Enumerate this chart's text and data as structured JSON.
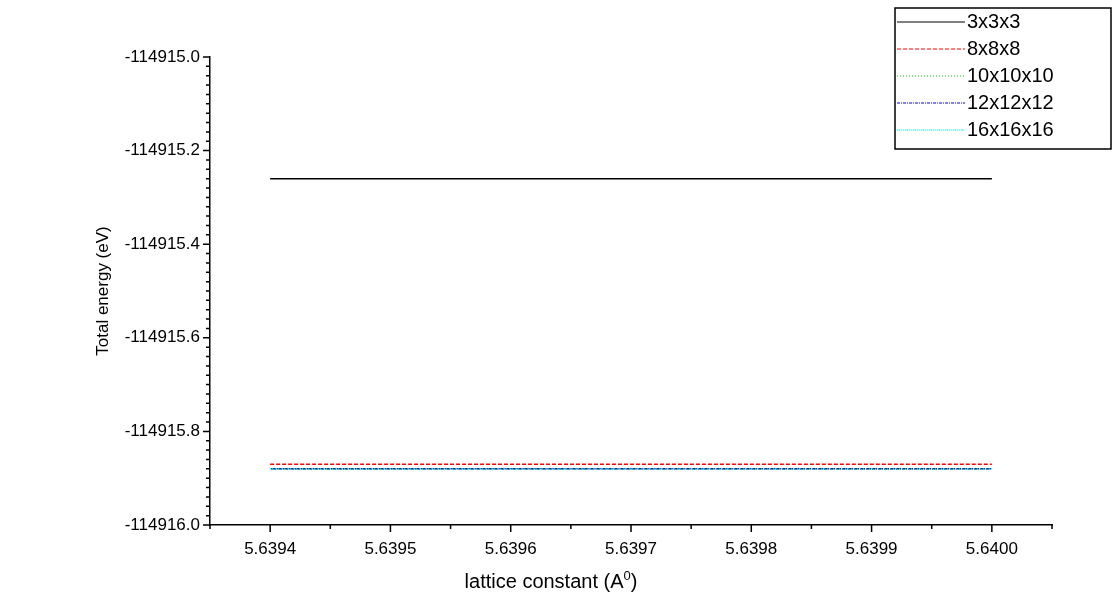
{
  "chart_data": {
    "type": "line",
    "xlabel": "lattice constant (A$^{0}$)",
    "ylabel": "Total energy (eV)",
    "xlim": [
      5.63935,
      5.64005
    ],
    "xticks": [
      {
        "value": 5.63935,
        "label": null
      },
      5.6394,
      {
        "value": 5.63945,
        "label": null
      },
      5.6395,
      {
        "value": 5.63955,
        "label": null
      },
      5.6396,
      {
        "value": 5.63965,
        "label": null
      },
      5.6397,
      {
        "value": 5.63975,
        "label": null
      },
      5.6398,
      {
        "value": 5.63985,
        "label": null
      },
      5.6399,
      {
        "value": 5.63995,
        "label": null
      },
      {
        "value": 5.64,
        "label": "5.6400"
      },
      {
        "value": 5.64005,
        "label": null
      }
    ],
    "ylim": [
      -114916.0,
      -114915.0
    ],
    "yticks": [
      {
        "value": -114916.0,
        "label": "-114916.0"
      },
      {
        "value": -114915.98,
        "label": null
      },
      {
        "value": -114915.96,
        "label": null
      },
      {
        "value": -114915.94,
        "label": null
      },
      {
        "value": -114915.92,
        "label": null
      },
      {
        "value": -114915.9,
        "label": null
      },
      {
        "value": -114915.88,
        "label": null
      },
      {
        "value": -114915.86,
        "label": null
      },
      {
        "value": -114915.84,
        "label": null
      },
      {
        "value": -114915.82,
        "label": null
      },
      {
        "value": -114915.8,
        "label": "-114915.8"
      },
      {
        "value": -114915.78,
        "label": null
      },
      {
        "value": -114915.76,
        "label": null
      },
      {
        "value": -114915.74,
        "label": null
      },
      {
        "value": -114915.72,
        "label": null
      },
      {
        "value": -114915.7,
        "label": null
      },
      {
        "value": -114915.68,
        "label": null
      },
      {
        "value": -114915.66,
        "label": null
      },
      {
        "value": -114915.64,
        "label": null
      },
      {
        "value": -114915.62,
        "label": null
      },
      {
        "value": -114915.6,
        "label": "-114915.6"
      },
      {
        "value": -114915.58,
        "label": null
      },
      {
        "value": -114915.56,
        "label": null
      },
      {
        "value": -114915.54,
        "label": null
      },
      {
        "value": -114915.52,
        "label": null
      },
      {
        "value": -114915.5,
        "label": null
      },
      {
        "value": -114915.48,
        "label": null
      },
      {
        "value": -114915.46,
        "label": null
      },
      {
        "value": -114915.44,
        "label": null
      },
      {
        "value": -114915.42,
        "label": null
      },
      {
        "value": -114915.4,
        "label": "-114915.4"
      },
      {
        "value": -114915.38,
        "label": null
      },
      {
        "value": -114915.36,
        "label": null
      },
      {
        "value": -114915.34,
        "label": null
      },
      {
        "value": -114915.32,
        "label": null
      },
      {
        "value": -114915.3,
        "label": null
      },
      {
        "value": -114915.28,
        "label": null
      },
      {
        "value": -114915.26,
        "label": null
      },
      {
        "value": -114915.24,
        "label": null
      },
      {
        "value": -114915.22,
        "label": null
      },
      {
        "value": -114915.2,
        "label": "-114915.2"
      },
      {
        "value": -114915.18,
        "label": null
      },
      {
        "value": -114915.16,
        "label": null
      },
      {
        "value": -114915.14,
        "label": null
      },
      {
        "value": -114915.12,
        "label": null
      },
      {
        "value": -114915.1,
        "label": null
      },
      {
        "value": -114915.08,
        "label": null
      },
      {
        "value": -114915.06,
        "label": null
      },
      {
        "value": -114915.04,
        "label": null
      },
      {
        "value": -114915.02,
        "label": null
      },
      {
        "value": -114915.0,
        "label": "-114915.0"
      }
    ],
    "x": [
      5.6394,
      5.64
    ],
    "series": [
      {
        "name": "3x3x3",
        "color": "#000000",
        "line_style": "solid",
        "values": [
          -114915.26,
          -114915.26
        ]
      },
      {
        "name": "8x8x8",
        "color": "#ff0000",
        "line_style": "dashed",
        "values": [
          -114915.87,
          -114915.87
        ]
      },
      {
        "name": "10x10x10",
        "color": "#00cc00",
        "line_style": "dotted",
        "values": [
          -114915.88,
          -114915.88
        ]
      },
      {
        "name": "12x12x12",
        "color": "#0000ff",
        "line_style": "dashdot",
        "values": [
          -114915.88,
          -114915.88
        ]
      },
      {
        "name": "16x16x16",
        "color": "#00ffff",
        "line_style": "dashdotdot",
        "values": [
          -114915.88,
          -114915.88
        ]
      }
    ],
    "legend": "top right",
    "grid": false,
    "marker": "none"
  }
}
